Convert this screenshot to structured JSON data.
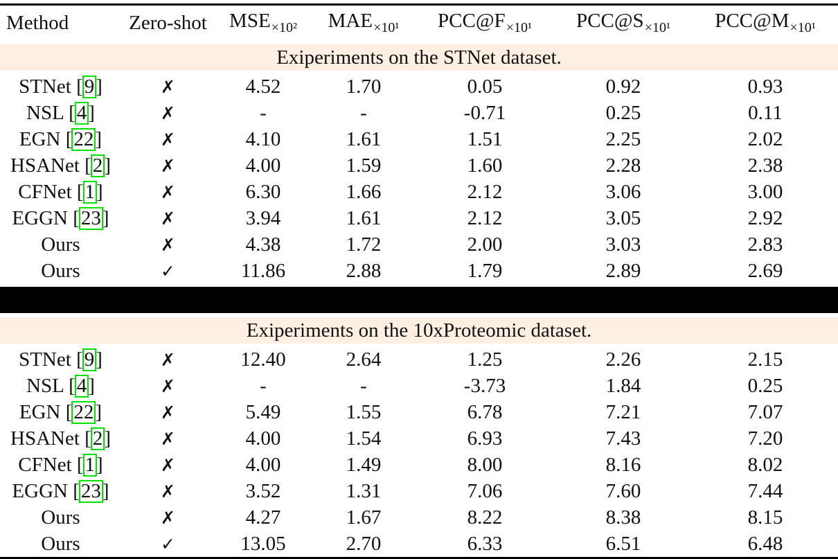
{
  "table": {
    "columns": [
      {
        "key": "method",
        "label": "Method",
        "sub": ""
      },
      {
        "key": "zero_shot",
        "label": "Zero-shot",
        "sub": ""
      },
      {
        "key": "mse",
        "label": "MSE",
        "sub": "×10²"
      },
      {
        "key": "mae",
        "label": "MAE",
        "sub": "×10¹"
      },
      {
        "key": "pcc_f",
        "label": "PCC@F",
        "sub": "×10¹"
      },
      {
        "key": "pcc_s",
        "label": "PCC@S",
        "sub": "×10¹"
      },
      {
        "key": "pcc_m",
        "label": "PCC@M",
        "sub": "×10¹"
      }
    ],
    "symbols": {
      "check": "✓",
      "cross": "✗"
    },
    "colors": {
      "section_bg": "#fdf0e3",
      "cite_border": "#00e400",
      "rule": "#000000",
      "text": "#111111"
    },
    "sections": [
      {
        "title": "Exiperiments on the STNet dataset.",
        "rows": [
          {
            "method": "STNet",
            "cite": "9",
            "zero_shot": false,
            "values": [
              "4.52",
              "1.70",
              "0.05",
              "0.92",
              "0.93"
            ]
          },
          {
            "method": "NSL",
            "cite": "4",
            "zero_shot": false,
            "values": [
              "-",
              "-",
              "-0.71",
              "0.25",
              "0.11"
            ]
          },
          {
            "method": "EGN",
            "cite": "22",
            "zero_shot": false,
            "values": [
              "4.10",
              "1.61",
              "1.51",
              "2.25",
              "2.02"
            ]
          },
          {
            "method": "HSANet",
            "cite": "2",
            "zero_shot": false,
            "values": [
              "4.00",
              "1.59",
              "1.60",
              "2.28",
              "2.38"
            ]
          },
          {
            "method": "CFNet",
            "cite": "1",
            "zero_shot": false,
            "values": [
              "6.30",
              "1.66",
              "2.12",
              "3.06",
              "3.00"
            ]
          },
          {
            "method": "EGGN",
            "cite": "23",
            "zero_shot": false,
            "values": [
              "3.94",
              "1.61",
              "2.12",
              "3.05",
              "2.92"
            ]
          },
          {
            "method": "Ours",
            "cite": "",
            "zero_shot": false,
            "values": [
              "4.38",
              "1.72",
              "2.00",
              "3.03",
              "2.83"
            ]
          },
          {
            "method": "Ours",
            "cite": "",
            "zero_shot": true,
            "values": [
              "11.86",
              "2.88",
              "1.79",
              "2.89",
              "2.69"
            ]
          }
        ]
      },
      {
        "title": "Exiperiments on the 10xProteomic dataset.",
        "rows": [
          {
            "method": "STNet",
            "cite": "9",
            "zero_shot": false,
            "values": [
              "12.40",
              "2.64",
              "1.25",
              "2.26",
              "2.15"
            ]
          },
          {
            "method": "NSL",
            "cite": "4",
            "zero_shot": false,
            "values": [
              "-",
              "-",
              "-3.73",
              "1.84",
              "0.25"
            ]
          },
          {
            "method": "EGN",
            "cite": "22",
            "zero_shot": false,
            "values": [
              "5.49",
              "1.55",
              "6.78",
              "7.21",
              "7.07"
            ]
          },
          {
            "method": "HSANet",
            "cite": "2",
            "zero_shot": false,
            "values": [
              "4.00",
              "1.54",
              "6.93",
              "7.43",
              "7.20"
            ]
          },
          {
            "method": "CFNet",
            "cite": "1",
            "zero_shot": false,
            "values": [
              "4.00",
              "1.49",
              "8.00",
              "8.16",
              "8.02"
            ]
          },
          {
            "method": "EGGN",
            "cite": "23",
            "zero_shot": false,
            "values": [
              "3.52",
              "1.31",
              "7.06",
              "7.60",
              "7.44"
            ]
          },
          {
            "method": "Ours",
            "cite": "",
            "zero_shot": false,
            "values": [
              "4.27",
              "1.67",
              "8.22",
              "8.38",
              "8.15"
            ]
          },
          {
            "method": "Ours",
            "cite": "",
            "zero_shot": true,
            "values": [
              "13.05",
              "2.70",
              "6.33",
              "6.51",
              "6.48"
            ]
          }
        ]
      }
    ]
  }
}
